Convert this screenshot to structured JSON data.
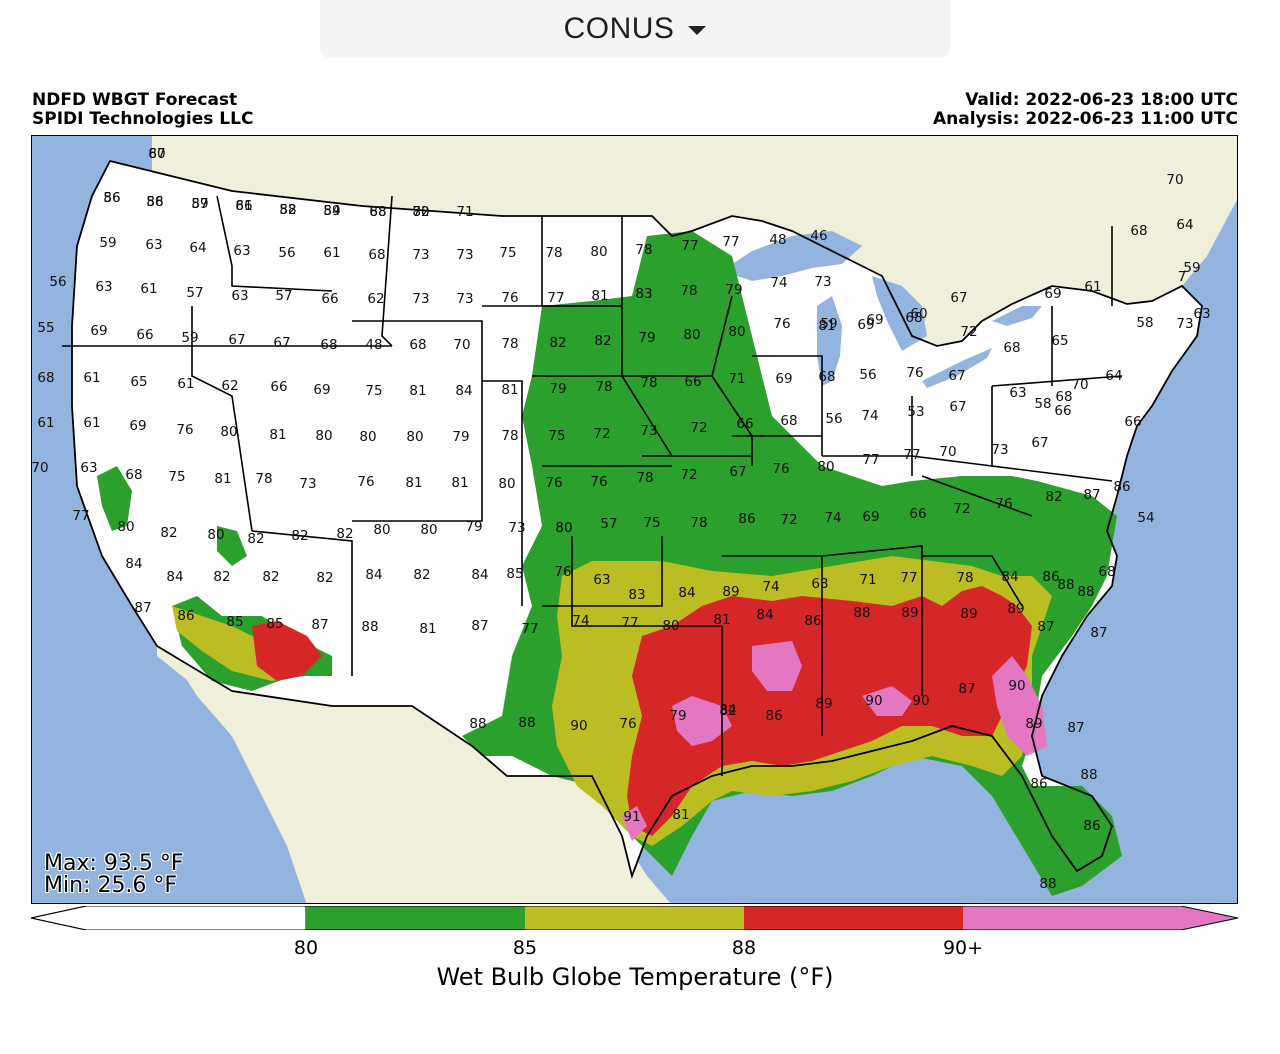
{
  "region_selector": {
    "label": "CONUS"
  },
  "header": {
    "title": "NDFD WBGT Forecast",
    "org": "SPIDI Technologies LLC",
    "valid": "Valid: 2022-06-23 18:00 UTC",
    "analysis": "Analysis: 2022-06-23 11:00 UTC"
  },
  "stats": {
    "max": "Max: 93.5 °F",
    "min": "Min: 25.6 °F"
  },
  "colorbar": {
    "title": "Wet Bulb Globe Temperature (°F)",
    "ticks": [
      "80",
      "85",
      "88",
      "90+"
    ],
    "bins": [
      {
        "range": "<80",
        "color": "#ffffff"
      },
      {
        "range": "80-85",
        "color": "#2ca02c"
      },
      {
        "range": "85-88",
        "color": "#bcbd22"
      },
      {
        "range": "88-90",
        "color": "#d62728"
      },
      {
        "range": "90+",
        "color": "#e377c2"
      }
    ]
  },
  "map_colors": {
    "ocean": "#94b4e0",
    "land_outside": "#efefdc",
    "lakes": "#94b4e0"
  },
  "station_values": [
    "60",
    "56",
    "58",
    "57",
    "61",
    "58",
    "59",
    "68",
    "70",
    "71",
    "59",
    "63",
    "64",
    "63",
    "56",
    "61",
    "68",
    "73",
    "73",
    "75",
    "78",
    "80",
    "78",
    "77",
    "77",
    "48",
    "46",
    "70",
    "64",
    "68",
    "56",
    "63",
    "61",
    "57",
    "63",
    "57",
    "66",
    "62",
    "73",
    "73",
    "76",
    "77",
    "81",
    "83",
    "78",
    "79",
    "74",
    "73",
    "59",
    "69",
    "60",
    "67",
    "69",
    "61",
    "7",
    "63",
    "55",
    "69",
    "66",
    "59",
    "67",
    "67",
    "68",
    "48",
    "68",
    "70",
    "78",
    "82",
    "82",
    "79",
    "80",
    "80",
    "76",
    "81",
    "69",
    "68",
    "72",
    "68",
    "65",
    "58",
    "73",
    "59",
    "68",
    "61",
    "65",
    "61",
    "62",
    "66",
    "69",
    "75",
    "81",
    "84",
    "81",
    "79",
    "78",
    "78",
    "66",
    "71",
    "69",
    "68",
    "56",
    "76",
    "67",
    "63",
    "58",
    "70",
    "64",
    "61",
    "61",
    "69",
    "76",
    "80",
    "81",
    "80",
    "80",
    "80",
    "79",
    "78",
    "75",
    "72",
    "73",
    "72",
    "66",
    "68",
    "56",
    "74",
    "53",
    "67",
    "66",
    "66",
    "68",
    "70",
    "63",
    "68",
    "75",
    "81",
    "78",
    "73",
    "76",
    "81",
    "81",
    "80",
    "76",
    "76",
    "78",
    "72",
    "67",
    "76",
    "80",
    "77",
    "77",
    "70",
    "73",
    "67",
    "54",
    "68",
    "77",
    "80",
    "82",
    "80",
    "82",
    "82",
    "82",
    "80",
    "80",
    "79",
    "73",
    "80",
    "57",
    "75",
    "78",
    "86",
    "72",
    "74",
    "69",
    "66",
    "72",
    "76",
    "82",
    "87",
    "86",
    "84",
    "84",
    "82",
    "82",
    "82",
    "84",
    "82",
    "84",
    "85",
    "76",
    "63",
    "83",
    "84",
    "89",
    "74",
    "63",
    "71",
    "77",
    "78",
    "84",
    "86",
    "87",
    "87",
    "88",
    "87",
    "86",
    "85",
    "85",
    "87",
    "88",
    "81",
    "87",
    "77",
    "74",
    "77",
    "80",
    "81",
    "84",
    "86",
    "88",
    "89",
    "89",
    "89",
    "88",
    "88",
    "88",
    "90",
    "76",
    "79",
    "82",
    "86",
    "89",
    "90",
    "90",
    "87",
    "90",
    "87",
    "89",
    "91",
    "81",
    "84",
    "86",
    "88",
    "86",
    "88",
    "87",
    "86",
    "86",
    "89",
    "86",
    "82",
    "84",
    "88",
    "82"
  ]
}
